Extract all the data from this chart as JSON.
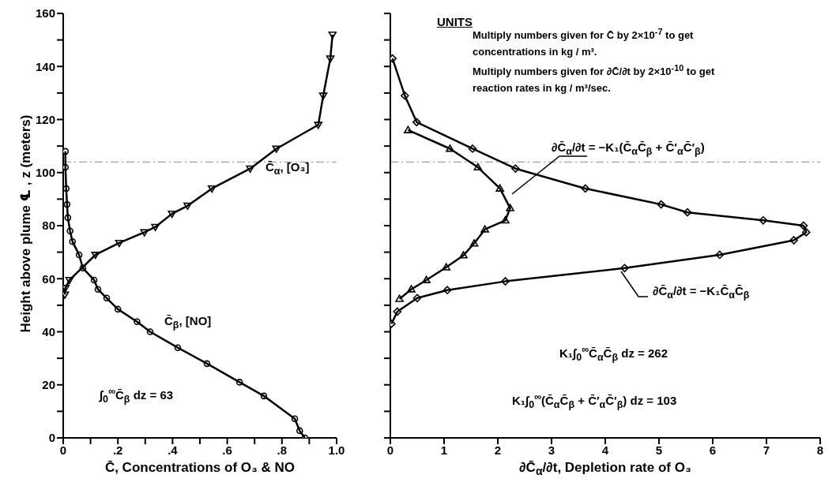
{
  "chart_data": [
    {
      "type": "line",
      "xlabel": "C̄, Concentrations of O₃ & NO",
      "ylabel": "Height above plume ℄ , z (meters)",
      "xlim": [
        0,
        1
      ],
      "xticks": [
        0,
        {
          "value": 0.1,
          "label": null
        },
        {
          "value": 0.2,
          "label": ".2"
        },
        {
          "value": 0.3,
          "label": null
        },
        {
          "value": 0.4,
          "label": ".4"
        },
        {
          "value": 0.5,
          "label": null
        },
        {
          "value": 0.6,
          "label": ".6"
        },
        {
          "value": 0.7,
          "label": null
        },
        {
          "value": 0.8,
          "label": ".8"
        },
        {
          "value": 0.9,
          "label": null
        },
        {
          "value": 1,
          "label": "1.0"
        }
      ],
      "ylim": [
        0,
        160
      ],
      "yticks": [
        0,
        {
          "value": 10,
          "label": null
        },
        20,
        {
          "value": 30,
          "label": null
        },
        40,
        {
          "value": 50,
          "label": null
        },
        60,
        {
          "value": 70,
          "label": null
        },
        80,
        {
          "value": 90,
          "label": null
        },
        100,
        {
          "value": 110,
          "label": null
        },
        120,
        {
          "value": 130,
          "label": null
        },
        140,
        {
          "value": 150,
          "label": null
        },
        160
      ],
      "series": [
        {
          "name": "C̄$_{β}$, [NO]",
          "color": "#000000",
          "marker": "circle",
          "x": [
            0.008,
            0.008,
            0.011,
            0.014,
            0.017,
            0.025,
            0.034,
            0.058,
            0.072,
            0.113,
            0.127,
            0.159,
            0.2,
            0.27,
            0.318,
            0.419,
            0.526,
            0.645,
            0.734,
            0.847,
            0.865,
            0.884
          ],
          "values": [
            108,
            102,
            94,
            88,
            83,
            78,
            74,
            69,
            64,
            59.5,
            56,
            52.7,
            48.5,
            43.8,
            40,
            34,
            28,
            21,
            15.8,
            7.2,
            2.7,
            0
          ]
        },
        {
          "name": "C̄$_{α}$, [O₃]",
          "color": "#000000",
          "marker": "triangle",
          "x": [
            0.985,
            0.977,
            0.951,
            0.933,
            0.78,
            0.684,
            0.544,
            0.455,
            0.398,
            0.337,
            0.297,
            0.205,
            0.118,
            0.023,
            0.008,
            0.006
          ],
          "values": [
            152,
            143,
            129,
            118,
            109,
            101.5,
            94,
            87.5,
            84.5,
            79.5,
            77.5,
            73.5,
            69,
            59.5,
            56.5,
            54
          ]
        }
      ],
      "ref_lines": [
        {
          "axis": "y",
          "value": 104,
          "color": "#888888",
          "line_style": "dashed"
        }
      ],
      "annotations": [
        "∫$_{0}$$^{∞}$C̄$_{β}$ dz = 63"
      ]
    },
    {
      "type": "line",
      "xlabel": "∂C̄$_{α}$/∂t, Depletion rate of O₃",
      "xlim": [
        0,
        8
      ],
      "xticks": [
        0,
        1,
        2,
        3,
        4,
        5,
        6,
        7,
        8
      ],
      "ylim": [
        0,
        160
      ],
      "yticks": [
        {
          "value": 0,
          "label": null
        },
        {
          "value": 10,
          "label": null
        },
        {
          "value": 20,
          "label": null
        },
        {
          "value": 30,
          "label": null
        },
        {
          "value": 40,
          "label": null
        },
        {
          "value": 50,
          "label": null
        },
        {
          "value": 60,
          "label": null
        },
        {
          "value": 70,
          "label": null
        },
        {
          "value": 80,
          "label": null
        },
        {
          "value": 90,
          "label": null
        },
        {
          "value": 100,
          "label": null
        },
        {
          "value": 110,
          "label": null
        },
        {
          "value": 120,
          "label": null
        },
        {
          "value": 130,
          "label": null
        },
        {
          "value": 140,
          "label": null
        },
        {
          "value": 150,
          "label": null
        },
        {
          "value": 160,
          "label": null
        }
      ],
      "tick_labels": "x",
      "series": [
        {
          "name": "∂C̄$_{α}$/∂t = −K₁(C̄$_{α}$C̄$_{β}$ + C̄′$_{α}$C̄′$_{β}$)",
          "color": "#000000",
          "marker": "triangle",
          "x": [
            0.33,
            1.11,
            1.63,
            2.04,
            2.23,
            2.14,
            1.76,
            1.56,
            1.36,
            1.04,
            0.67,
            0.39,
            0.17
          ],
          "values": [
            116,
            109,
            102,
            94,
            86.6,
            82,
            78.6,
            73.3,
            68.8,
            64.3,
            59.5,
            56,
            52.4
          ]
        },
        {
          "name": "∂C̄$_{α}$/∂t = −K₁C̄$_{α}$C̄$_{β}$",
          "color": "#000000",
          "marker": "diamond",
          "x": [
            0.04,
            0.27,
            0.49,
            1.53,
            2.33,
            3.63,
            5.04,
            5.53,
            6.94,
            7.69,
            7.74,
            7.51,
            6.13,
            4.36,
            2.14,
            1.06,
            0.5,
            0.13,
            0.02
          ],
          "values": [
            143,
            129,
            119,
            109,
            101.5,
            94,
            88,
            85,
            82,
            80,
            77.5,
            74.5,
            69,
            64,
            59,
            55.7,
            52.7,
            47.6,
            43
          ]
        }
      ],
      "ref_lines": [
        {
          "axis": "y",
          "value": 104,
          "color": "#888888",
          "line_style": "dashed"
        }
      ],
      "annotations": [
        "UNITS",
        "Multiply numbers given for C̄ by 2×10$^{-7}$ to get concentrations in kg / m³.",
        "Multiply numbers given for ∂C̄/∂t by 2×10$^{-10}$ to get reaction rates in kg / m³/sec.",
        "K₁∫$_{0}$$^{∞}$C̄$_{α}$C̄$_{β}$ dz = 262",
        "K₁∫$_{0}$$^{∞}$(C̄$_{α}$C̄$_{β}$ + C̄′$_{α}$C̄′$_{β}$) dz = 103"
      ]
    }
  ]
}
